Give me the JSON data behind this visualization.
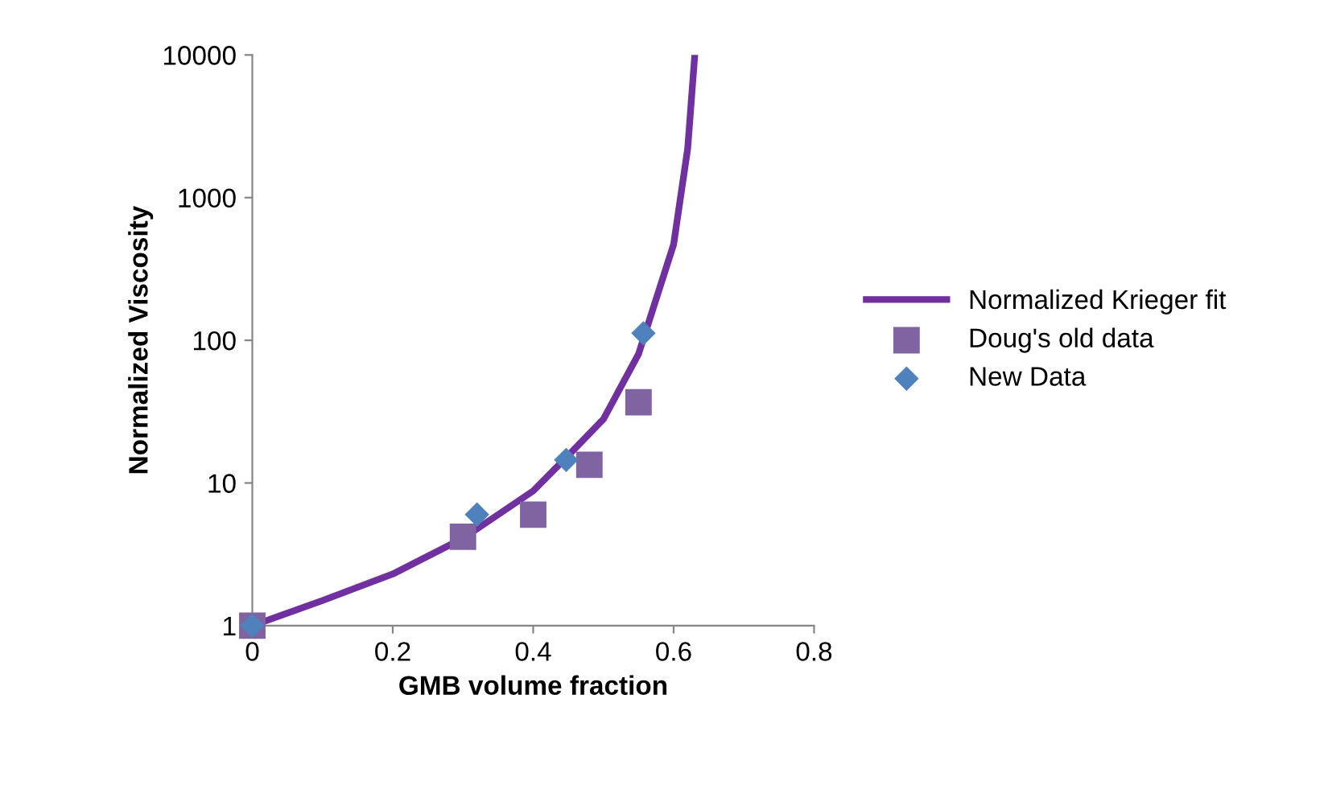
{
  "chart_data": {
    "type": "scatter",
    "xlabel": "GMB volume fraction",
    "ylabel": "Normalized Viscosity",
    "log": "y",
    "xlim": [
      0,
      0.8
    ],
    "xticks": [
      0,
      0.2,
      0.4,
      0.6,
      0.8
    ],
    "ylim": [
      1,
      10000
    ],
    "yticks": [
      1,
      10,
      100,
      1000,
      10000
    ],
    "grid": false,
    "legend": "right",
    "series": [
      {
        "name": "Normalized Krieger fit",
        "type": "line",
        "color": "#7030a0",
        "marker": "none",
        "line_style": "solid",
        "x": [
          0,
          0.1,
          0.2,
          0.3,
          0.35,
          0.4,
          0.45,
          0.5,
          0.55,
          0.6,
          0.62,
          0.63
        ],
        "values": [
          1,
          1.5,
          2.3,
          4.1,
          6.0,
          8.8,
          15.6,
          28,
          80,
          470,
          2200,
          9800
        ]
      },
      {
        "name": "Doug's old data",
        "color": "#8064a2",
        "marker": "square",
        "x": [
          0,
          0.3,
          0.4,
          0.48,
          0.55
        ],
        "values": [
          1,
          4.2,
          6.0,
          13.4,
          36.8
        ]
      },
      {
        "name": "New Data",
        "color": "#4f81bd",
        "marker": "diamond",
        "x": [
          0,
          0.32,
          0.447,
          0.557
        ],
        "values": [
          1,
          6.0,
          14.5,
          112
        ]
      }
    ]
  }
}
